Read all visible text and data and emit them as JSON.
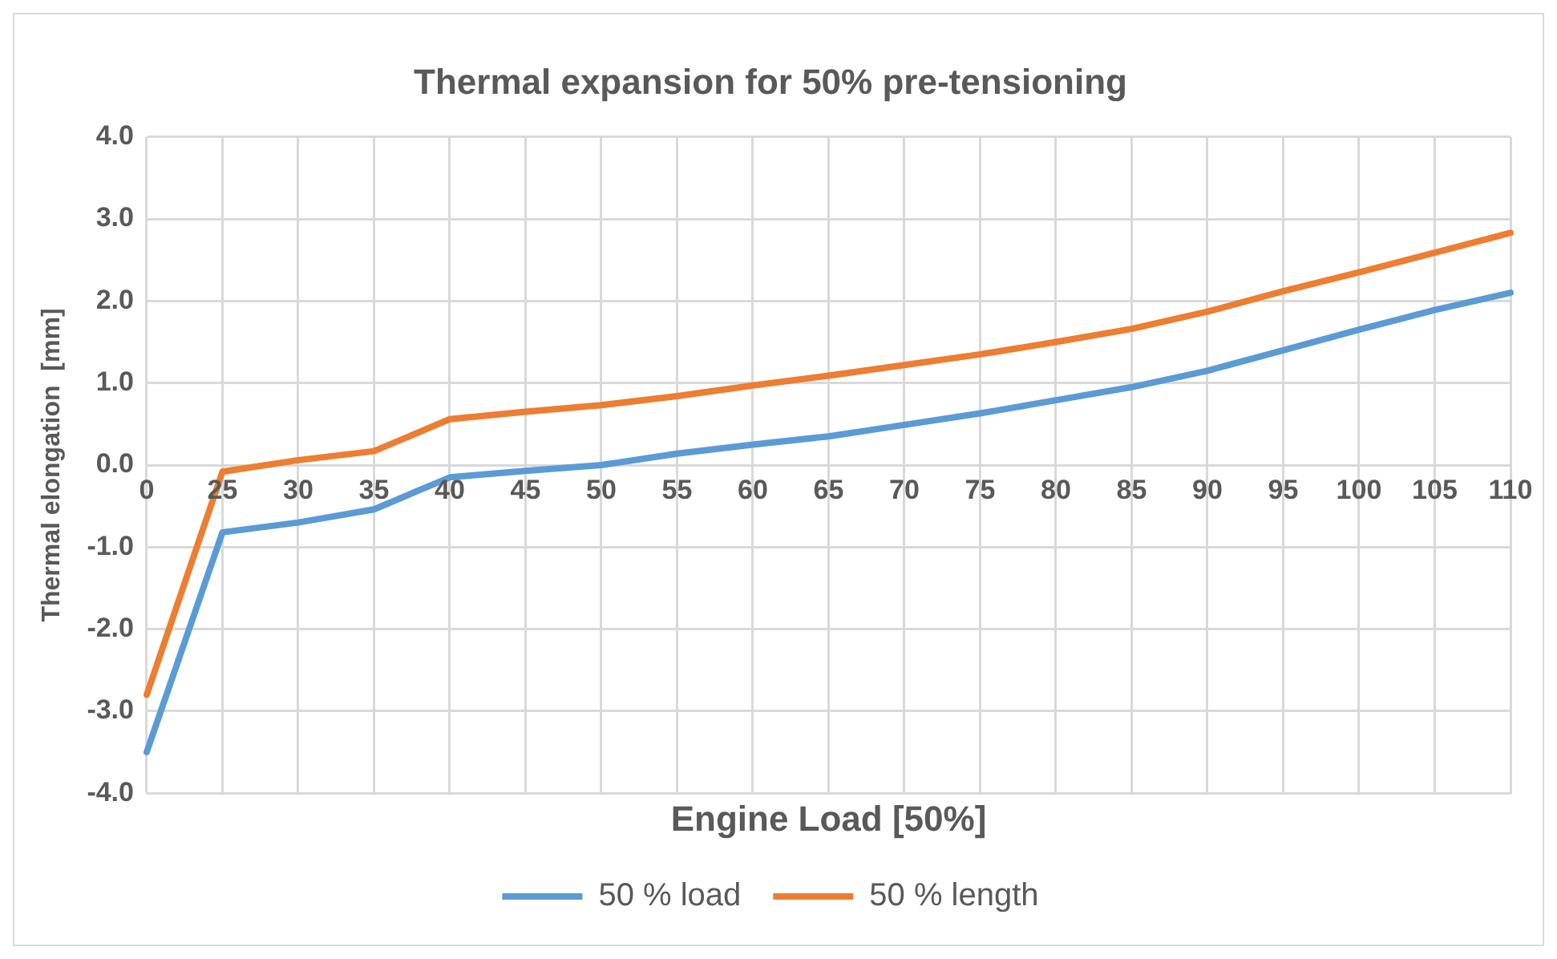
{
  "chart_data": {
    "type": "line",
    "title": "Thermal expansion for 50% pre-tensioning",
    "xlabel": "Engine Load [50%]",
    "ylabel": "Thermal elongation  [mm]",
    "categories": [
      "0",
      "25",
      "30",
      "35",
      "40",
      "45",
      "50",
      "55",
      "60",
      "65",
      "70",
      "75",
      "80",
      "85",
      "90",
      "95",
      "100",
      "105",
      "110"
    ],
    "series": [
      {
        "name": "50 % load",
        "color": "#5b9bd5",
        "values": [
          -3.5,
          -0.82,
          -0.7,
          -0.54,
          -0.15,
          -0.07,
          0.0,
          0.14,
          0.25,
          0.35,
          0.49,
          0.63,
          0.79,
          0.95,
          1.15,
          1.4,
          1.65,
          1.89,
          2.1
        ]
      },
      {
        "name": "50 % length",
        "color": "#ed7d31",
        "values": [
          -2.8,
          -0.08,
          0.06,
          0.17,
          0.56,
          0.65,
          0.73,
          0.84,
          0.97,
          1.09,
          1.22,
          1.35,
          1.5,
          1.66,
          1.87,
          2.12,
          2.35,
          2.59,
          2.83
        ]
      }
    ],
    "ylim": [
      -4,
      4
    ],
    "yticks": [
      {
        "value": -4,
        "label": "-4.0"
      },
      {
        "value": -3,
        "label": "-3.0"
      },
      {
        "value": -2,
        "label": "-2.0"
      },
      {
        "value": -1,
        "label": "-1.0"
      },
      {
        "value": 0,
        "label": "0.0"
      },
      {
        "value": 1,
        "label": "1.0"
      },
      {
        "value": 2,
        "label": "2.0"
      },
      {
        "value": 3,
        "label": "3.0"
      },
      {
        "value": 4,
        "label": "4.0"
      }
    ],
    "grid": true,
    "legend": "bottom",
    "marker": "none",
    "line_style": "solid"
  }
}
